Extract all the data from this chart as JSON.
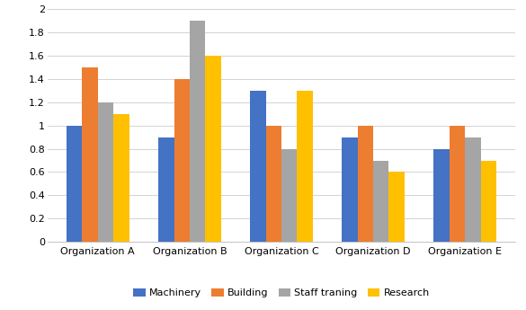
{
  "categories": [
    "Organization A",
    "Organization B",
    "Organization C",
    "Organization D",
    "Organization E"
  ],
  "series": {
    "Machinery": [
      1.0,
      0.9,
      1.3,
      0.9,
      0.8
    ],
    "Building": [
      1.5,
      1.4,
      1.0,
      1.0,
      1.0
    ],
    "Staff traning": [
      1.2,
      1.9,
      0.8,
      0.7,
      0.9
    ],
    "Research": [
      1.1,
      1.6,
      1.3,
      0.6,
      0.7
    ]
  },
  "colors": {
    "Machinery": "#4472C4",
    "Building": "#ED7D31",
    "Staff traning": "#A5A5A5",
    "Research": "#FFC000"
  },
  "ylim": [
    0,
    2.0
  ],
  "yticks": [
    0,
    0.2,
    0.4,
    0.6,
    0.8,
    1.0,
    1.2,
    1.4,
    1.6,
    1.8,
    2.0
  ],
  "legend_order": [
    "Machinery",
    "Building",
    "Staff traning",
    "Research"
  ],
  "background_color": "#FFFFFF",
  "grid_color": "#D3D3D3"
}
